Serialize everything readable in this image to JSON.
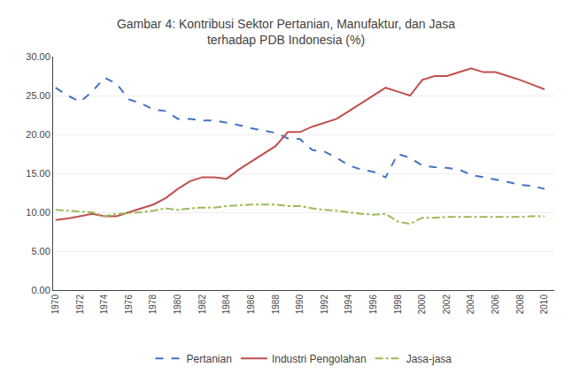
{
  "chart_data": {
    "type": "line",
    "title": "Gambar 4: Kontribusi Sektor Pertanian, Manufaktur, dan Jasa\nterhadap PDB Indonesia (%)",
    "x": [
      1970,
      1971,
      1972,
      1973,
      1974,
      1975,
      1976,
      1977,
      1978,
      1979,
      1980,
      1981,
      1982,
      1983,
      1984,
      1985,
      1986,
      1987,
      1988,
      1989,
      1990,
      1991,
      1992,
      1993,
      1994,
      1995,
      1996,
      1997,
      1998,
      1999,
      2000,
      2001,
      2002,
      2003,
      2004,
      2005,
      2006,
      2007,
      2008,
      2009,
      2010
    ],
    "series": [
      {
        "name": "Pertanian",
        "color": "#4472C4",
        "line_style": "dashed",
        "values": [
          26.0,
          25.0,
          24.2,
          25.5,
          27.3,
          26.5,
          24.5,
          24.0,
          23.2,
          23.0,
          22.0,
          22.0,
          21.8,
          21.8,
          21.5,
          21.2,
          20.8,
          20.5,
          20.2,
          19.5,
          19.4,
          18.0,
          17.8,
          17.0,
          16.0,
          15.5,
          15.2,
          14.5,
          17.5,
          17.0,
          16.0,
          15.8,
          15.7,
          15.5,
          14.8,
          14.5,
          14.2,
          13.9,
          13.5,
          13.4,
          13.0
        ]
      },
      {
        "name": "Industri Pengolahan",
        "color": "#C0504D",
        "line_style": "solid",
        "values": [
          9.0,
          9.2,
          9.5,
          9.8,
          9.5,
          9.5,
          10.0,
          10.5,
          11.0,
          11.8,
          13.0,
          14.0,
          14.5,
          14.5,
          14.3,
          15.5,
          16.5,
          17.5,
          18.5,
          20.3,
          20.3,
          21.0,
          21.5,
          22.0,
          23.0,
          24.0,
          25.0,
          26.0,
          25.5,
          25.0,
          27.0,
          27.5,
          27.5,
          28.0,
          28.5,
          28.0,
          28.0,
          27.5,
          27.0,
          26.4,
          25.8
        ]
      },
      {
        "name": "Jasa-jasa",
        "color": "#9BBB59",
        "line_style": "dashdot",
        "values": [
          10.3,
          10.2,
          10.1,
          10.0,
          9.5,
          9.8,
          9.9,
          10.0,
          10.2,
          10.5,
          10.3,
          10.5,
          10.6,
          10.6,
          10.8,
          10.9,
          11.0,
          11.0,
          11.0,
          10.8,
          10.8,
          10.5,
          10.3,
          10.2,
          10.0,
          9.8,
          9.7,
          9.8,
          8.8,
          8.5,
          9.3,
          9.3,
          9.4,
          9.4,
          9.4,
          9.4,
          9.4,
          9.4,
          9.4,
          9.5,
          9.5
        ]
      }
    ],
    "xlim": [
      1969.8,
      2010.8
    ],
    "xticks": [
      1970,
      1972,
      1974,
      1976,
      1978,
      1980,
      1982,
      1984,
      1986,
      1988,
      1990,
      1992,
      1994,
      1996,
      1998,
      2000,
      2002,
      2004,
      2006,
      2008,
      2010
    ],
    "ylim": [
      0,
      30
    ],
    "yticks": [
      {
        "value": 0,
        "label": "0.00"
      },
      {
        "value": 5,
        "label": "5.00"
      },
      {
        "value": 10,
        "label": "10.00"
      },
      {
        "value": 15,
        "label": "15.00"
      },
      {
        "value": 20,
        "label": "20.00"
      },
      {
        "value": 25,
        "label": "25.00"
      },
      {
        "value": 30,
        "label": "30.00"
      }
    ],
    "grid": "y",
    "legend": "bottom"
  }
}
